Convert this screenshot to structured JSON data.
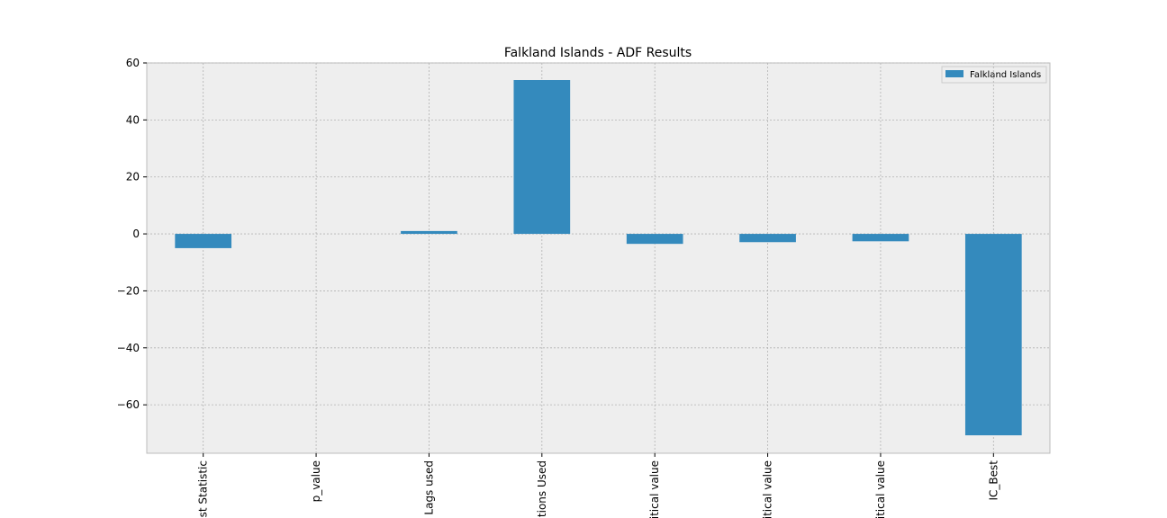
{
  "chart_data": {
    "type": "bar",
    "title": "Falkland Islands - ADF Results",
    "categories": [
      "est Statistic",
      "p_value",
      "Lags used",
      "ations Used",
      "ritical value",
      "ritical value",
      "ritical value",
      "IC_Best"
    ],
    "series": [
      {
        "name": "Falkland Islands",
        "color": "#348abd",
        "values": [
          -5,
          0,
          1,
          54,
          -3.5,
          -2.9,
          -2.6,
          -70.7
        ]
      }
    ],
    "ylim": [
      -77,
      60
    ],
    "yticks": [
      {
        "value": -60,
        "label": "−60"
      },
      {
        "value": -40,
        "label": "−40"
      },
      {
        "value": -20,
        "label": "−20"
      },
      0,
      20,
      40,
      60
    ],
    "grid": true,
    "legend": "upper right"
  }
}
